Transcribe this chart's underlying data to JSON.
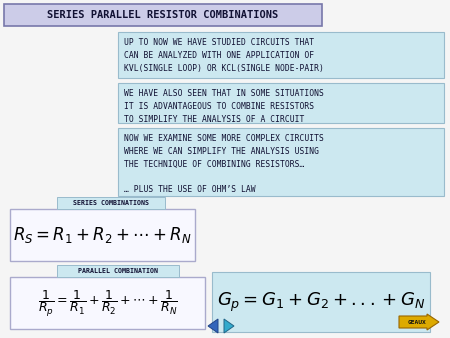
{
  "title": "SERIES PARALLEL RESISTOR COMBINATIONS",
  "title_bg": "#cccce8",
  "title_border": "#7777aa",
  "bg_color": "#f5f5f5",
  "text_box1": "UP TO NOW WE HAVE STUDIED CIRCUITS THAT\nCAN BE ANALYZED WITH ONE APPLICATION OF\nKVL(SINGLE LOOP) OR KCL(SINGLE NODE-PAIR)",
  "text_box2": "WE HAVE ALSO SEEN THAT IN SOME SITUATIONS\nIT IS ADVANTAGEOUS TO COMBINE RESISTORS\nTO SIMPLIFY THE ANALYSIS OF A CIRCUIT",
  "text_box3": "NOW WE EXAMINE SOME MORE COMPLEX CIRCUITS\nWHERE WE CAN SIMPLIFY THE ANALYSIS USING\nTHE TECHNIQUE OF COMBINING RESISTORS…\n\n… PLUS THE USE OF OHM’S LAW",
  "text_box_bg": "#cce8f0",
  "text_box_border": "#99bbcc",
  "series_label": "SERIES COMBINATIONS",
  "series_formula": "$R_S = R_1 + R_2 + \\cdots + R_N$",
  "series_box_bg": "#f8f8ff",
  "series_box_border": "#aaaacc",
  "series_label_bg": "#cce8f0",
  "series_label_border": "#99bbcc",
  "parallel_label": "PARALLEL COMBINATION",
  "parallel_formula": "$\\dfrac{1}{R_p} = \\dfrac{1}{R_1} + \\dfrac{1}{R_2} + \\cdots + \\dfrac{1}{R_N}$",
  "parallel_formula2": "$G_p = G_1 + G_2 + ...+ G_N$",
  "parallel_box_bg": "#f8f8ff",
  "parallel_box_border": "#aaaacc",
  "parallel_label_bg": "#cce8f0",
  "parallel_label_border": "#99bbcc",
  "gp_box_bg": "#cce8f0",
  "gp_box_border": "#99bbcc",
  "nav_left_color": "#3366bb",
  "nav_right_color": "#33aacc",
  "geaux_bg": "#ddaa00",
  "geaux_border": "#996600",
  "geaux_text": "GEAUX"
}
